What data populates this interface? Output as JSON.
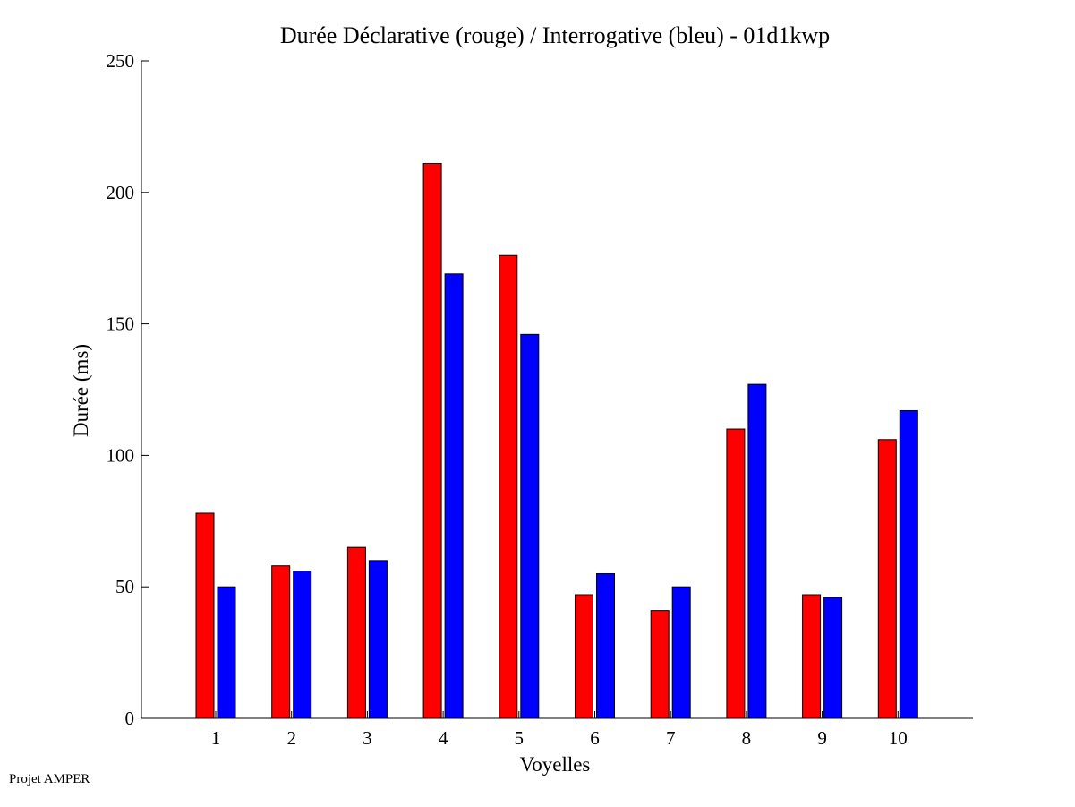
{
  "chart_data": {
    "type": "bar",
    "title": "Durée Déclarative (rouge) / Interrogative (bleu) - 01d1kwp",
    "xlabel": "Voyelles",
    "ylabel": "Durée (ms)",
    "categories": [
      "1",
      "2",
      "3",
      "4",
      "5",
      "6",
      "7",
      "8",
      "9",
      "10"
    ],
    "ylim": [
      0,
      250
    ],
    "yticks": [
      "0",
      "50",
      "100",
      "150",
      "200",
      "250"
    ],
    "grid": false,
    "series": [
      {
        "color": "#ff0000",
        "values": [
          78,
          58,
          65,
          211,
          176,
          47,
          41,
          110,
          47,
          106
        ]
      },
      {
        "color": "#0000ff",
        "values": [
          50,
          56,
          60,
          169,
          146,
          55,
          50,
          127,
          46,
          117
        ]
      }
    ]
  },
  "footer": {
    "text": "Projet AMPER"
  }
}
